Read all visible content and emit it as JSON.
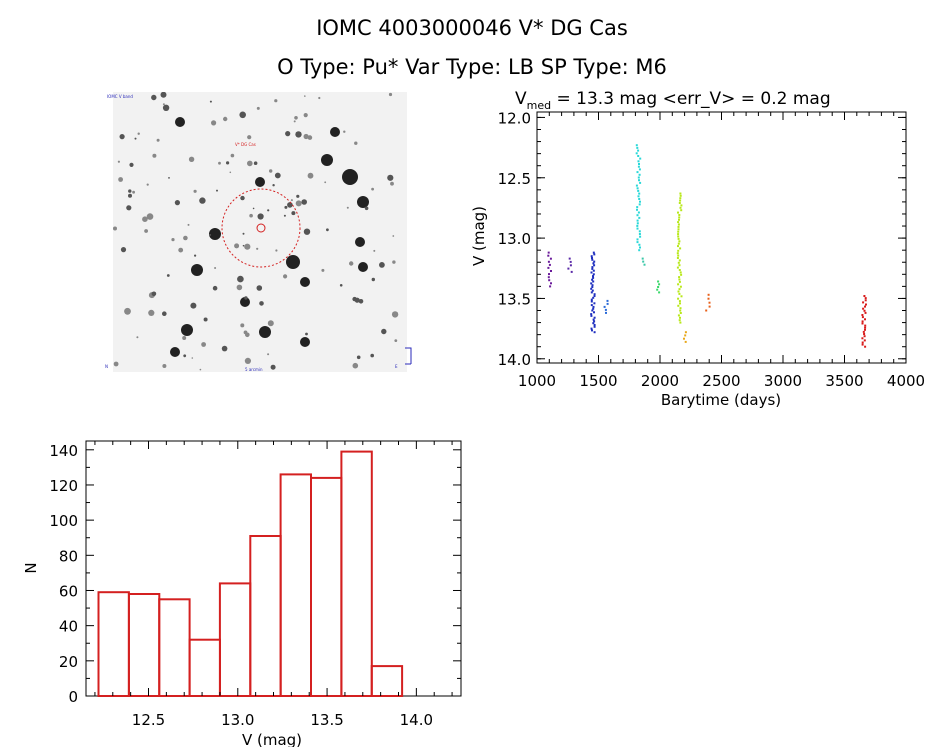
{
  "header": {
    "title_line1": "IOMC 4003000046    V* DG Cas",
    "title_line2": "O Type: Pu*  Var Type: LB  SP Type: M6"
  },
  "image_panel": {
    "label_top_left": "IOMC V band",
    "label_center": "V* DG Cas",
    "label_bottom": "5 arcmin",
    "label_bottom_left": "N",
    "label_bottom_right": "E"
  },
  "chart_data": [
    {
      "type": "scatter",
      "title_prefix": "V",
      "title_subscript": "med",
      "title_rest": " = 13.3 mag <err_V> = 0.2 mag",
      "xlabel": "Barytime (days)",
      "ylabel": "V (mag)",
      "xlim": [
        1000,
        4000
      ],
      "ylim": [
        14.0,
        12.0
      ],
      "y_inverted": true,
      "xticks": [
        1000,
        1500,
        2000,
        2500,
        3000,
        3500,
        4000
      ],
      "yticks": [
        12.0,
        12.5,
        13.0,
        13.5,
        14.0
      ],
      "ytick_labels": [
        "12.0",
        "12.5",
        "13.0",
        "13.5",
        "14.0"
      ],
      "groups": [
        {
          "x": 1100,
          "y_min": 13.12,
          "y_max": 13.4,
          "n": 12,
          "color": "#6a1a9a"
        },
        {
          "x": 1270,
          "y_min": 13.17,
          "y_max": 13.28,
          "n": 5,
          "color": "#5a2aa8"
        },
        {
          "x": 1455,
          "y_min": 13.12,
          "y_max": 13.78,
          "n": 45,
          "color": "#1f2fbf"
        },
        {
          "x": 1560,
          "y_min": 13.52,
          "y_max": 13.62,
          "n": 5,
          "color": "#2a6ad8"
        },
        {
          "x": 1825,
          "y_min": 12.23,
          "y_max": 13.1,
          "n": 40,
          "color": "#2ad8d8"
        },
        {
          "x": 1870,
          "y_min": 13.17,
          "y_max": 13.22,
          "n": 3,
          "color": "#3ac8a8"
        },
        {
          "x": 1985,
          "y_min": 13.36,
          "y_max": 13.45,
          "n": 5,
          "color": "#3ad86a"
        },
        {
          "x": 2160,
          "y_min": 12.63,
          "y_max": 13.7,
          "n": 55,
          "color": "#b8e81a"
        },
        {
          "x": 2200,
          "y_min": 13.78,
          "y_max": 13.86,
          "n": 4,
          "color": "#e8a81a"
        },
        {
          "x": 2390,
          "y_min": 13.47,
          "y_max": 13.6,
          "n": 5,
          "color": "#e8601a"
        },
        {
          "x": 3660,
          "y_min": 13.48,
          "y_max": 13.9,
          "n": 25,
          "color": "#d81a1a"
        }
      ]
    },
    {
      "type": "bar",
      "histogram": true,
      "xlabel": "V (mag)",
      "ylabel": "N",
      "xlim": [
        12.15,
        14.25
      ],
      "ylim": [
        0,
        145
      ],
      "xticks": [
        12.5,
        13.0,
        13.5,
        14.0
      ],
      "xtick_labels": [
        "12.5",
        "13.0",
        "13.5",
        "14.0"
      ],
      "yticks": [
        0,
        20,
        40,
        60,
        80,
        100,
        120,
        140
      ],
      "bin_edges": [
        12.22,
        12.39,
        12.56,
        12.73,
        12.9,
        13.07,
        13.24,
        13.41,
        13.58,
        13.75,
        13.92
      ],
      "values": [
        59,
        58,
        55,
        32,
        64,
        91,
        126,
        124,
        139,
        17
      ],
      "bar_color": "#d42020"
    }
  ]
}
